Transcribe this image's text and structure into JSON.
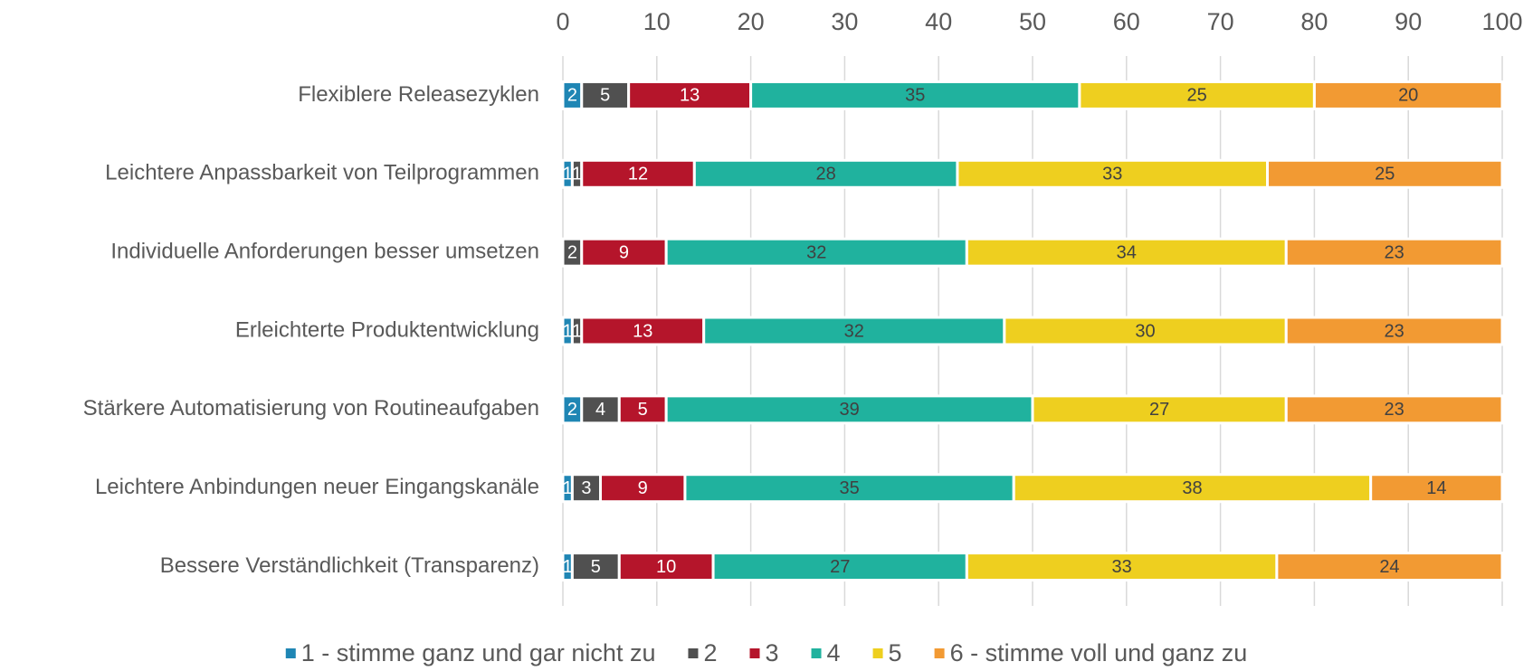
{
  "chart_data": {
    "type": "stacked-bar-horizontal",
    "categories": [
      "Flexiblere Releasezyklen",
      "Leichtere Anpassbarkeit von Teilprogrammen",
      "Individuelle Anforderungen besser umsetzen",
      "Erleichterte Produktentwicklung",
      "Stärkere Automatisierung von Routineaufgaben",
      "Leichtere Anbindungen neuer Eingangskanäle",
      "Bessere Verständlichkeit (Transparenz)"
    ],
    "series": [
      {
        "name": "1 - stimme ganz und gar nicht zu",
        "color": "#1f86b4",
        "values": [
          2,
          1,
          0,
          1,
          2,
          1,
          1
        ]
      },
      {
        "name": "2",
        "color": "#505050",
        "values": [
          5,
          1,
          2,
          1,
          4,
          3,
          5
        ]
      },
      {
        "name": "3",
        "color": "#b5152b",
        "values": [
          13,
          12,
          9,
          13,
          5,
          9,
          10
        ]
      },
      {
        "name": "4",
        "color": "#20b29e",
        "values": [
          35,
          28,
          32,
          32,
          39,
          35,
          27
        ]
      },
      {
        "name": "5",
        "color": "#eecf1f",
        "values": [
          25,
          33,
          34,
          30,
          27,
          38,
          33
        ]
      },
      {
        "name": "6 - stimme voll und ganz zu",
        "color": "#f29a33",
        "values": [
          20,
          25,
          23,
          23,
          23,
          14,
          24
        ]
      }
    ],
    "xlim": [
      0,
      100
    ],
    "xticks": [
      0,
      10,
      20,
      30,
      40,
      50,
      60,
      70,
      80,
      90,
      100
    ],
    "grid": true,
    "legend": "bottom"
  }
}
